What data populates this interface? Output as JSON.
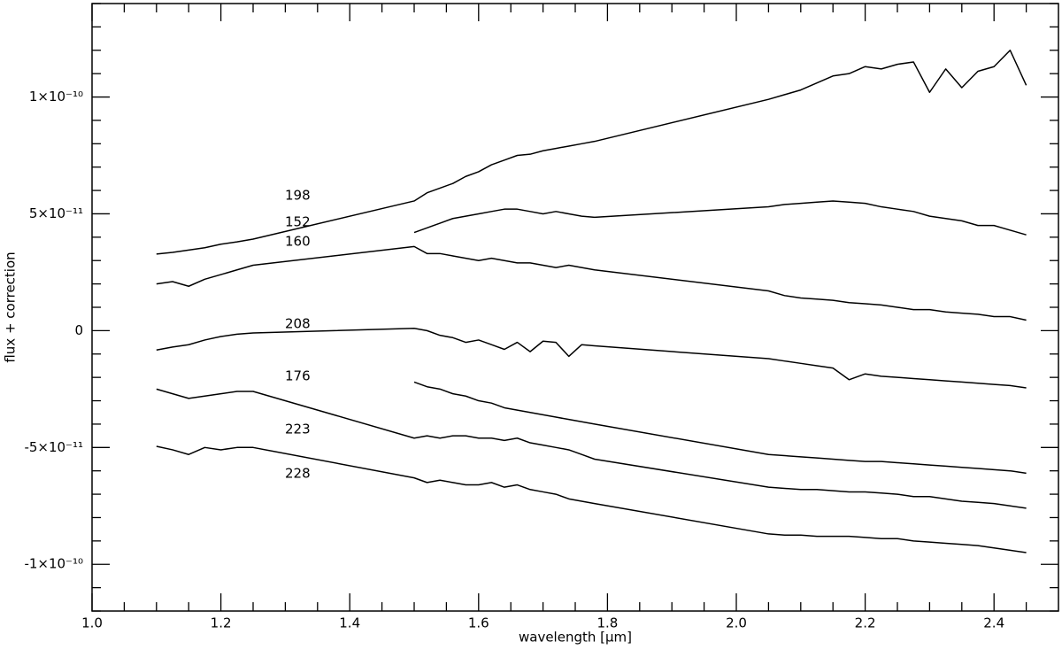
{
  "chart_data": {
    "type": "line",
    "xlabel": "wavelength [μm]",
    "ylabel": "flux + correction",
    "xlim": [
      1.0,
      2.5
    ],
    "ylim": [
      -1.2e-10,
      1.4e-10
    ],
    "xticks": [
      {
        "value": 1.0,
        "label": "1.0"
      },
      1.2,
      1.4,
      1.6,
      1.8,
      {
        "value": 2.0,
        "label": "2.0"
      },
      2.2,
      2.4
    ],
    "xticks_minor": [
      1.05,
      1.1,
      1.15,
      1.25,
      1.3,
      1.35,
      1.45,
      1.5,
      1.55,
      1.65,
      1.7,
      1.75,
      1.85,
      1.9,
      1.95,
      2.05,
      2.1,
      2.15,
      2.25,
      2.3,
      2.35,
      2.45
    ],
    "yticks": [
      {
        "value": -1e-10,
        "label": "-1×10⁻¹⁰"
      },
      {
        "value": -5e-11,
        "label": "-5×10⁻¹¹"
      },
      0,
      {
        "value": 5e-11,
        "label": "5×10⁻¹¹"
      },
      {
        "value": 1e-10,
        "label": "1×10⁻¹⁰"
      }
    ],
    "yticks_minor": [
      -1.2e-10,
      -1.1e-10,
      -9e-11,
      -8e-11,
      -7e-11,
      -6e-11,
      -4e-11,
      -3e-11,
      -2e-11,
      -1e-11,
      1e-11,
      2e-11,
      3e-11,
      4e-11,
      6e-11,
      7e-11,
      8e-11,
      9e-11,
      1.1e-10,
      1.2e-10,
      1.3e-10,
      1.4e-10
    ],
    "grid": false,
    "x": [
      1.1,
      1.125,
      1.15,
      1.175,
      1.2,
      1.225,
      1.25,
      1.5,
      1.52,
      1.54,
      1.56,
      1.58,
      1.6,
      1.62,
      1.64,
      1.66,
      1.68,
      1.7,
      1.72,
      1.74,
      1.76,
      1.78,
      2.05,
      2.075,
      2.1,
      2.125,
      2.15,
      2.175,
      2.2,
      2.225,
      2.25,
      2.275,
      2.3,
      2.325,
      2.35,
      2.375,
      2.4,
      2.425,
      2.45
    ],
    "series": [
      {
        "name": "198",
        "color": "#000000",
        "values": [
          3.28e-11,
          3.35e-11,
          3.45e-11,
          3.55e-11,
          3.7e-11,
          3.8e-11,
          3.92e-11,
          5.55e-11,
          5.9e-11,
          6.1e-11,
          6.3e-11,
          6.6e-11,
          6.8e-11,
          7.1e-11,
          7.3e-11,
          7.5e-11,
          7.55e-11,
          7.7e-11,
          7.8e-11,
          7.9e-11,
          8e-11,
          8.1e-11,
          9.9e-11,
          1.01e-10,
          1.03e-10,
          1.06e-10,
          1.09e-10,
          1.1e-10,
          1.13e-10,
          1.12e-10,
          1.14e-10,
          1.15e-10,
          1.02e-10,
          1.12e-10,
          1.04e-10,
          1.11e-10,
          1.13e-10,
          1.2e-10,
          1.05e-10
        ]
      },
      {
        "name": "152",
        "color": "#000000",
        "values": [
          null,
          null,
          null,
          null,
          null,
          null,
          null,
          4.2e-11,
          4.4e-11,
          4.6e-11,
          4.8e-11,
          4.9e-11,
          5e-11,
          5.1e-11,
          5.2e-11,
          5.2e-11,
          5.1e-11,
          5e-11,
          5.1e-11,
          5e-11,
          4.9e-11,
          4.85e-11,
          5.3e-11,
          5.4e-11,
          5.45e-11,
          5.5e-11,
          5.55e-11,
          5.5e-11,
          5.45e-11,
          5.3e-11,
          5.2e-11,
          5.1e-11,
          4.9e-11,
          4.8e-11,
          4.7e-11,
          4.5e-11,
          4.5e-11,
          4.3e-11,
          4.1e-11
        ]
      },
      {
        "name": "160",
        "color": "#000000",
        "values": [
          2e-11,
          2.1e-11,
          1.9e-11,
          2.2e-11,
          2.4e-11,
          2.6e-11,
          2.8e-11,
          3.6e-11,
          3.3e-11,
          3.3e-11,
          3.2e-11,
          3.1e-11,
          3e-11,
          3.1e-11,
          3e-11,
          2.9e-11,
          2.9e-11,
          2.8e-11,
          2.7e-11,
          2.8e-11,
          2.7e-11,
          2.6e-11,
          1.7e-11,
          1.5e-11,
          1.4e-11,
          1.35e-11,
          1.3e-11,
          1.2e-11,
          1.15e-11,
          1.1e-11,
          1e-11,
          9e-12,
          9e-12,
          8e-12,
          7.5e-12,
          7e-12,
          6e-12,
          6e-12,
          4.5e-12
        ]
      },
      {
        "name": "208",
        "color": "#000000",
        "values": [
          -8.3e-12,
          -7e-12,
          -6e-12,
          -4e-12,
          -2.5e-12,
          -1.5e-12,
          -1e-12,
          1e-12,
          0.0,
          -2e-12,
          -3e-12,
          -5e-12,
          -4e-12,
          -6e-12,
          -8e-12,
          -5e-12,
          -9e-12,
          -4.5e-12,
          -5e-12,
          -1.1e-11,
          -6e-12,
          -6.5e-12,
          -1.2e-11,
          -1.3e-11,
          -1.4e-11,
          -1.5e-11,
          -1.6e-11,
          -2.1e-11,
          -1.85e-11,
          -1.95e-11,
          -2e-11,
          -2.05e-11,
          -2.1e-11,
          -2.15e-11,
          -2.2e-11,
          -2.25e-11,
          -2.3e-11,
          -2.35e-11,
          -2.45e-11
        ]
      },
      {
        "name": "176",
        "color": "#000000",
        "values": [
          null,
          null,
          null,
          null,
          null,
          null,
          null,
          -2.2e-11,
          -2.4e-11,
          -2.5e-11,
          -2.7e-11,
          -2.8e-11,
          -3e-11,
          -3.1e-11,
          -3.3e-11,
          -3.4e-11,
          -3.5e-11,
          -3.6e-11,
          -3.7e-11,
          -3.8e-11,
          -3.9e-11,
          -4e-11,
          -5.3e-11,
          -5.35e-11,
          -5.4e-11,
          -5.45e-11,
          -5.5e-11,
          -5.55e-11,
          -5.6e-11,
          -5.6e-11,
          -5.65e-11,
          -5.7e-11,
          -5.75e-11,
          -5.8e-11,
          -5.85e-11,
          -5.9e-11,
          -5.95e-11,
          -6e-11,
          -6.1e-11
        ]
      },
      {
        "name": "223",
        "color": "#000000",
        "values": [
          -2.5e-11,
          -2.7e-11,
          -2.9e-11,
          -2.8e-11,
          -2.7e-11,
          -2.6e-11,
          -2.6e-11,
          -4.6e-11,
          -4.5e-11,
          -4.6e-11,
          -4.5e-11,
          -4.5e-11,
          -4.6e-11,
          -4.6e-11,
          -4.7e-11,
          -4.6e-11,
          -4.8e-11,
          -4.9e-11,
          -5e-11,
          -5.1e-11,
          -5.3e-11,
          -5.5e-11,
          -6.7e-11,
          -6.75e-11,
          -6.8e-11,
          -6.8e-11,
          -6.85e-11,
          -6.9e-11,
          -6.9e-11,
          -6.95e-11,
          -7e-11,
          -7.1e-11,
          -7.1e-11,
          -7.2e-11,
          -7.3e-11,
          -7.35e-11,
          -7.4e-11,
          -7.5e-11,
          -7.6e-11
        ]
      },
      {
        "name": "228",
        "color": "#000000",
        "values": [
          -4.95e-11,
          -5.1e-11,
          -5.3e-11,
          -5e-11,
          -5.1e-11,
          -5e-11,
          -5e-11,
          -6.3e-11,
          -6.5e-11,
          -6.4e-11,
          -6.5e-11,
          -6.6e-11,
          -6.6e-11,
          -6.5e-11,
          -6.7e-11,
          -6.6e-11,
          -6.8e-11,
          -6.9e-11,
          -7e-11,
          -7.2e-11,
          -7.3e-11,
          -7.4e-11,
          -8.7e-11,
          -8.75e-11,
          -8.75e-11,
          -8.8e-11,
          -8.8e-11,
          -8.8e-11,
          -8.85e-11,
          -8.9e-11,
          -8.9e-11,
          -9e-11,
          -9.05e-11,
          -9.1e-11,
          -9.15e-11,
          -9.2e-11,
          -9.3e-11,
          -9.4e-11,
          -9.5e-11
        ]
      }
    ]
  }
}
